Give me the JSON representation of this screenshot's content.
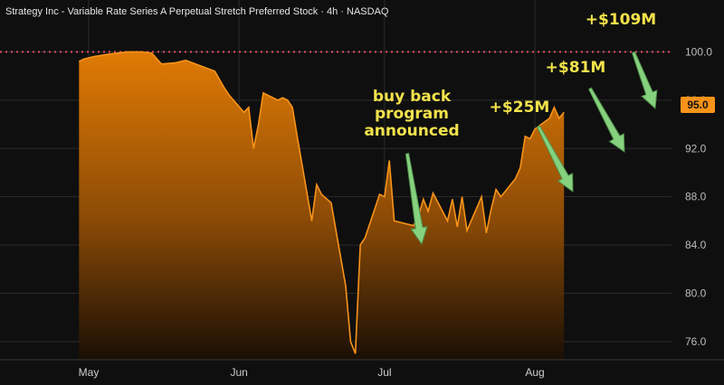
{
  "chart_data": {
    "type": "area",
    "title": "Strategy Inc - Variable Rate Series A Perpetual Stretch Preferred Stock · 4h · NASDAQ",
    "ylim": [
      74.5,
      102.5
    ],
    "y_ticks": [
      "76.0",
      "80.0",
      "84.0",
      "88.0",
      "92.0",
      "96.0",
      "100.0"
    ],
    "x_ticks": [
      "May",
      "Jun",
      "Jul",
      "Aug"
    ],
    "reference_line": 100.0,
    "last_price": "95.0",
    "grid": true,
    "colors": {
      "line": "#f7931a",
      "fill_top": "#e07b05",
      "fill_bottom": "#1a0f05",
      "reference": "#e24a63",
      "annotation_text": "#f2e24b",
      "arrow": "#86d17e",
      "background": "#0f0f0f"
    },
    "series": [
      {
        "x": [
          "Apr 29",
          "Apr 30",
          "May 2",
          "May 5",
          "May 7",
          "May 9",
          "May 12",
          "May 14",
          "May 16",
          "May 19",
          "May 21",
          "May 23",
          "May 27",
          "May 29",
          "May 30",
          "Jun 2",
          "Jun 3",
          "Jun 4",
          "Jun 5",
          "Jun 6",
          "Jun 9",
          "Jun 10",
          "Jun 11",
          "Jun 12",
          "Jun 13",
          "Jun 16",
          "Jun 17",
          "Jun 18",
          "Jun 20",
          "Jun 23",
          "Jun 24",
          "Jun 25",
          "Jun 26",
          "Jun 27",
          "Jun 30",
          "Jul 1",
          "Jul 2",
          "Jul 3",
          "Jul 7",
          "Jul 8",
          "Jul 9",
          "Jul 10",
          "Jul 11",
          "Jul 14",
          "Jul 15",
          "Jul 16",
          "Jul 17",
          "Jul 18",
          "Jul 21",
          "Jul 22",
          "Jul 23",
          "Jul 24",
          "Jul 25",
          "Jul 28",
          "Jul 29",
          "Jul 30",
          "Jul 31",
          "Aug 1",
          "Aug 4",
          "Aug 5",
          "Aug 6",
          "Aug 7"
        ],
        "y": [
          99.2,
          99.4,
          99.6,
          99.8,
          99.9,
          100.0,
          100.0,
          99.9,
          99.0,
          99.1,
          99.3,
          99.0,
          98.4,
          97.0,
          96.4,
          95.0,
          95.4,
          92.0,
          94.0,
          96.6,
          96.0,
          96.2,
          96.0,
          95.4,
          93.0,
          86.0,
          89.0,
          88.2,
          87.5,
          80.6,
          76.0,
          75.0,
          84.0,
          84.6,
          88.2,
          88.0,
          91.0,
          86.0,
          85.6,
          86.4,
          87.8,
          86.8,
          88.3,
          86.0,
          87.8,
          85.5,
          88.0,
          85.2,
          88.0,
          85.0,
          87.0,
          88.6,
          88.0,
          89.5,
          90.4,
          93.0,
          92.8,
          93.6,
          94.5,
          95.4,
          94.5,
          95.0
        ]
      }
    ],
    "annotations": [
      {
        "lines": [
          "buy back",
          "program",
          "announced"
        ]
      },
      {
        "lines": [
          "+$25M"
        ]
      },
      {
        "lines": [
          "+$81M"
        ]
      },
      {
        "lines": [
          "+$109M"
        ]
      }
    ]
  }
}
